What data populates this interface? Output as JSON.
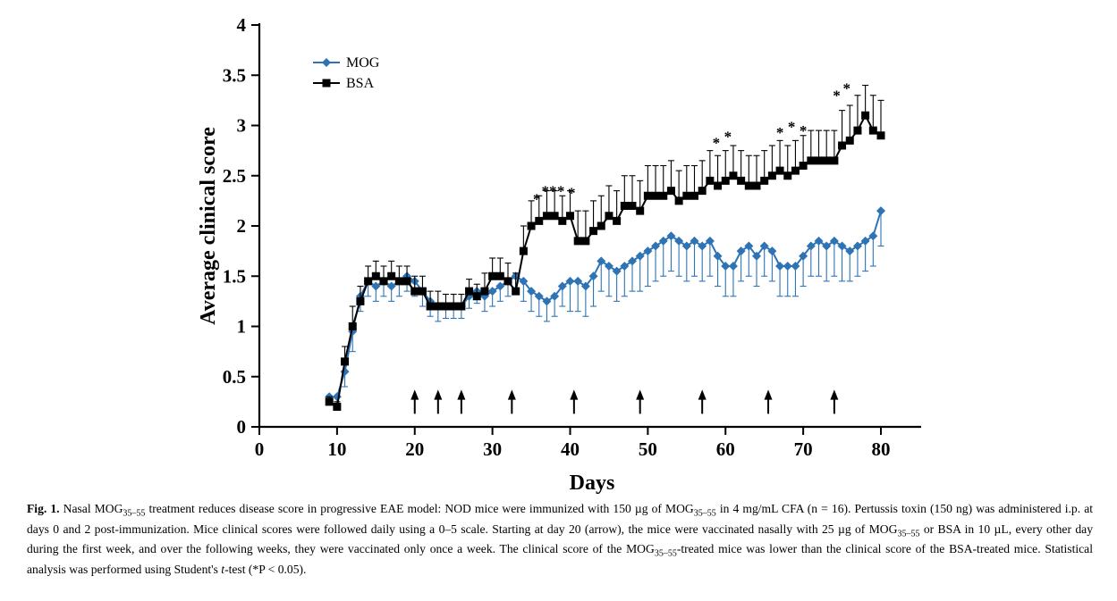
{
  "figure": {
    "caption_segments": [
      {
        "t": "Fig. 1.",
        "b": true
      },
      {
        "t": " Nasal MOG"
      },
      {
        "t": "35–55",
        "sub": true
      },
      {
        "t": " treatment reduces disease score in progressive EAE model: NOD mice were immunized with 150 µg of MOG"
      },
      {
        "t": "35–55",
        "sub": true
      },
      {
        "t": " in 4 mg/mL CFA (n = 16). Pertussis toxin (150 ng) was administered i.p. at days 0 and 2 post-immunization. Mice clinical scores were followed daily using a 0–5 scale. Starting at day 20 (arrow), the mice were vaccinated nasally with 25 µg of MOG"
      },
      {
        "t": "35–55",
        "sub": true
      },
      {
        "t": " or BSA in 10 µL, every other day during the first week, and over the following weeks, they were vaccinated only once a week. The clinical score of the MOG"
      },
      {
        "t": "35–55",
        "sub": true
      },
      {
        "t": "-treated mice was lower than the clinical score of the BSA-treated mice. Statistical analysis was performed using Student's "
      },
      {
        "t": "t",
        "i": true
      },
      {
        "t": "-test (*P < 0.05)."
      }
    ]
  },
  "chart_data": {
    "type": "line",
    "title": "",
    "xlabel": "Days",
    "ylabel": "Average clinical score",
    "xlim": [
      0,
      85
    ],
    "ylim": [
      0,
      4
    ],
    "xticks": [
      0,
      10,
      20,
      30,
      40,
      50,
      60,
      70,
      80
    ],
    "yticks": [
      0,
      0.5,
      1,
      1.5,
      2,
      2.5,
      3,
      3.5,
      4
    ],
    "grid": false,
    "legend_position": "top-left-inside",
    "x": [
      9,
      10,
      11,
      12,
      13,
      14,
      15,
      16,
      17,
      18,
      19,
      20,
      21,
      22,
      23,
      24,
      25,
      26,
      27,
      28,
      29,
      30,
      31,
      32,
      33,
      34,
      35,
      36,
      37,
      38,
      39,
      40,
      41,
      42,
      43,
      44,
      45,
      46,
      47,
      48,
      49,
      50,
      51,
      52,
      53,
      54,
      55,
      56,
      57,
      58,
      59,
      60,
      61,
      62,
      63,
      64,
      65,
      66,
      67,
      68,
      69,
      70,
      71,
      72,
      73,
      74,
      75,
      76,
      77,
      78,
      79,
      80
    ],
    "series": [
      {
        "name": "MOG",
        "color": "#2e74b5",
        "marker": "diamond",
        "error_direction": "down",
        "values": [
          0.3,
          0.3,
          0.55,
          0.95,
          1.3,
          1.45,
          1.4,
          1.45,
          1.4,
          1.45,
          1.5,
          1.45,
          1.35,
          1.25,
          1.2,
          1.2,
          1.2,
          1.2,
          1.3,
          1.35,
          1.3,
          1.35,
          1.4,
          1.45,
          1.5,
          1.45,
          1.35,
          1.3,
          1.25,
          1.3,
          1.4,
          1.45,
          1.45,
          1.4,
          1.5,
          1.65,
          1.6,
          1.55,
          1.6,
          1.65,
          1.7,
          1.75,
          1.8,
          1.85,
          1.9,
          1.85,
          1.8,
          1.85,
          1.8,
          1.85,
          1.7,
          1.6,
          1.6,
          1.75,
          1.8,
          1.7,
          1.8,
          1.75,
          1.6,
          1.6,
          1.6,
          1.7,
          1.8,
          1.85,
          1.8,
          1.85,
          1.8,
          1.75,
          1.8,
          1.85,
          1.9,
          2.15
        ],
        "errors": [
          0.05,
          0.05,
          0.15,
          0.2,
          0.15,
          0.15,
          0.15,
          0.15,
          0.15,
          0.15,
          0.15,
          0.15,
          0.15,
          0.15,
          0.15,
          0.12,
          0.12,
          0.12,
          0.12,
          0.12,
          0.15,
          0.15,
          0.15,
          0.15,
          0.15,
          0.2,
          0.2,
          0.2,
          0.2,
          0.2,
          0.2,
          0.3,
          0.3,
          0.3,
          0.3,
          0.3,
          0.3,
          0.3,
          0.3,
          0.3,
          0.35,
          0.35,
          0.35,
          0.35,
          0.35,
          0.35,
          0.35,
          0.35,
          0.35,
          0.35,
          0.3,
          0.3,
          0.3,
          0.3,
          0.3,
          0.3,
          0.3,
          0.3,
          0.3,
          0.3,
          0.3,
          0.3,
          0.3,
          0.35,
          0.35,
          0.35,
          0.35,
          0.3,
          0.3,
          0.3,
          0.3,
          0.35
        ]
      },
      {
        "name": "BSA",
        "color": "#000000",
        "marker": "square",
        "error_direction": "up",
        "values": [
          0.25,
          0.2,
          0.65,
          1.0,
          1.25,
          1.45,
          1.5,
          1.45,
          1.5,
          1.45,
          1.45,
          1.35,
          1.35,
          1.2,
          1.2,
          1.2,
          1.2,
          1.2,
          1.35,
          1.3,
          1.35,
          1.5,
          1.5,
          1.45,
          1.35,
          1.75,
          2.0,
          2.05,
          2.1,
          2.1,
          2.05,
          2.1,
          1.85,
          1.85,
          1.95,
          2.0,
          2.1,
          2.05,
          2.2,
          2.2,
          2.15,
          2.3,
          2.3,
          2.3,
          2.35,
          2.25,
          2.3,
          2.3,
          2.35,
          2.45,
          2.4,
          2.45,
          2.5,
          2.45,
          2.4,
          2.4,
          2.45,
          2.5,
          2.55,
          2.5,
          2.55,
          2.6,
          2.65,
          2.65,
          2.65,
          2.65,
          2.8,
          2.85,
          2.95,
          3.1,
          2.95,
          2.9
        ],
        "errors": [
          0.05,
          0.05,
          0.15,
          0.2,
          0.15,
          0.15,
          0.15,
          0.15,
          0.15,
          0.15,
          0.15,
          0.15,
          0.15,
          0.15,
          0.15,
          0.12,
          0.12,
          0.12,
          0.12,
          0.12,
          0.18,
          0.18,
          0.18,
          0.18,
          0.18,
          0.25,
          0.25,
          0.25,
          0.25,
          0.25,
          0.25,
          0.25,
          0.3,
          0.3,
          0.3,
          0.3,
          0.3,
          0.3,
          0.3,
          0.3,
          0.3,
          0.3,
          0.3,
          0.3,
          0.3,
          0.3,
          0.3,
          0.3,
          0.3,
          0.3,
          0.3,
          0.3,
          0.3,
          0.3,
          0.3,
          0.3,
          0.3,
          0.3,
          0.3,
          0.3,
          0.3,
          0.3,
          0.3,
          0.3,
          0.3,
          0.3,
          0.35,
          0.35,
          0.35,
          0.3,
          0.35,
          0.35
        ]
      }
    ],
    "treatment_arrows_days": [
      20,
      23,
      26,
      32.5,
      40.5,
      49,
      57,
      65.5,
      74
    ],
    "significance_marks": [
      {
        "day": 35.7,
        "score": 2.22,
        "text": "*"
      },
      {
        "day": 37.3,
        "score": 2.3,
        "text": "**"
      },
      {
        "day": 38.8,
        "score": 2.3,
        "text": "*"
      },
      {
        "day": 40.2,
        "score": 2.28,
        "text": "*"
      },
      {
        "day": 58.8,
        "score": 2.78,
        "text": "*"
      },
      {
        "day": 60.3,
        "score": 2.84,
        "text": "*"
      },
      {
        "day": 67,
        "score": 2.88,
        "text": "*"
      },
      {
        "day": 68.5,
        "score": 2.94,
        "text": "*"
      },
      {
        "day": 70,
        "score": 2.9,
        "text": "*"
      },
      {
        "day": 74.3,
        "score": 3.25,
        "text": "*"
      },
      {
        "day": 75.6,
        "score": 3.32,
        "text": "*"
      }
    ]
  }
}
